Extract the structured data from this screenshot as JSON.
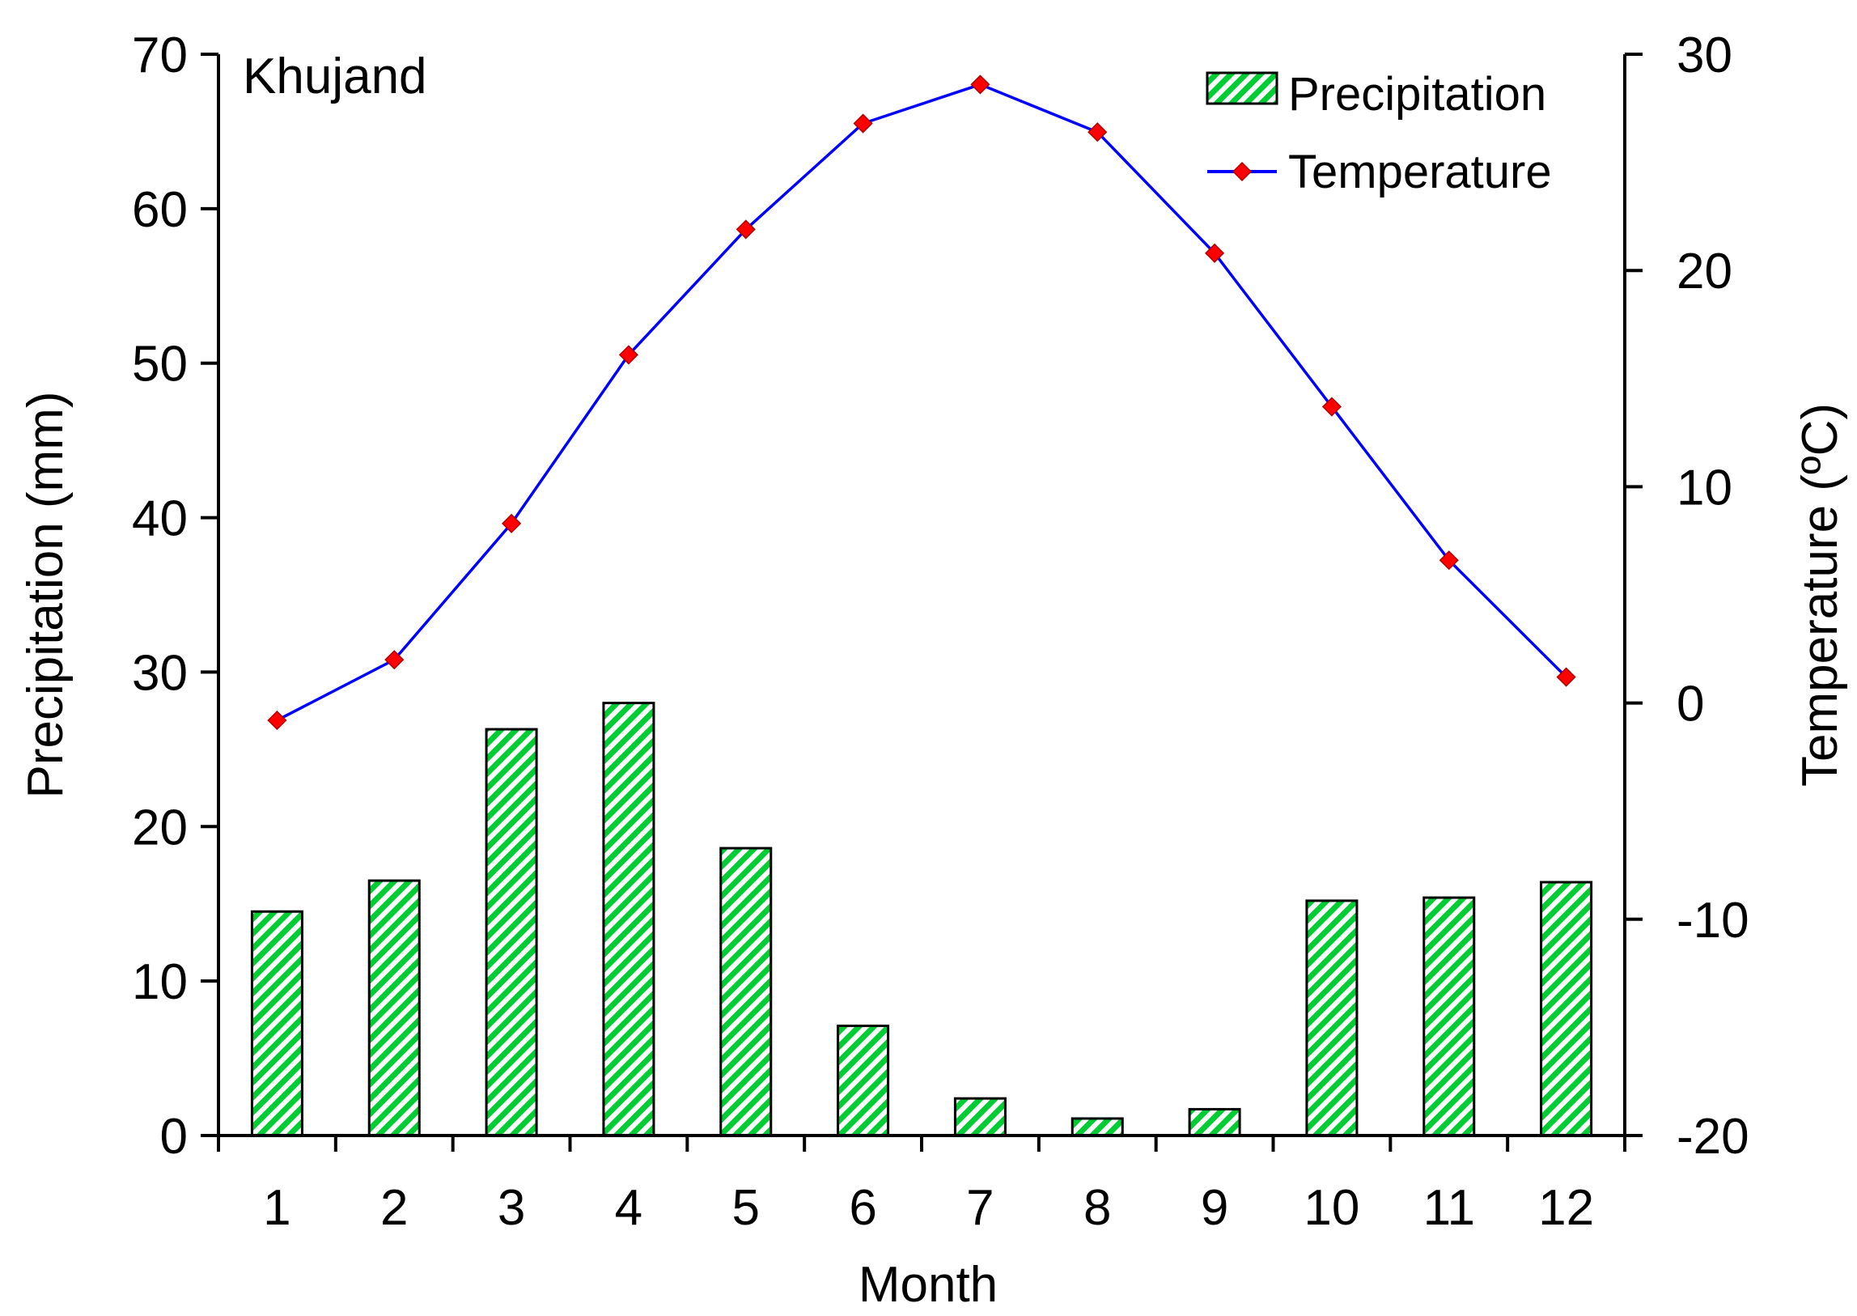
{
  "chart_data": {
    "type": "bar+line",
    "annotation": "Khujand",
    "xlabel": "Month",
    "categories": [
      "1",
      "2",
      "3",
      "4",
      "5",
      "6",
      "7",
      "8",
      "9",
      "10",
      "11",
      "12"
    ],
    "series": [
      {
        "name": "Precipitation",
        "type": "bar",
        "axis": "left",
        "values": [
          14.5,
          16.5,
          26.3,
          28.0,
          18.6,
          7.1,
          2.4,
          1.1,
          1.7,
          15.2,
          15.4,
          16.4
        ]
      },
      {
        "name": "Temperature",
        "type": "line",
        "axis": "right",
        "values": [
          -0.8,
          2.0,
          8.3,
          16.1,
          21.9,
          26.8,
          28.6,
          26.4,
          20.8,
          13.7,
          6.6,
          1.2
        ]
      }
    ],
    "y_left": {
      "label": "Precipitation (mm)",
      "ylim": [
        0,
        70
      ],
      "ticks": [
        "0",
        "10",
        "20",
        "30",
        "40",
        "50",
        "60",
        "70"
      ]
    },
    "y_right": {
      "label": "Temperature (ºC)",
      "ylim": [
        -20,
        30
      ],
      "ticks": [
        "-20",
        "-10",
        "0",
        "10",
        "20",
        "30"
      ]
    },
    "legend_position": "top-right",
    "colors": {
      "bar_fill": "#00cc33",
      "bar_stripe": "#ffffff",
      "line": "#0000ff",
      "marker": "#ff0000",
      "marker_edge": "#b00000"
    }
  }
}
